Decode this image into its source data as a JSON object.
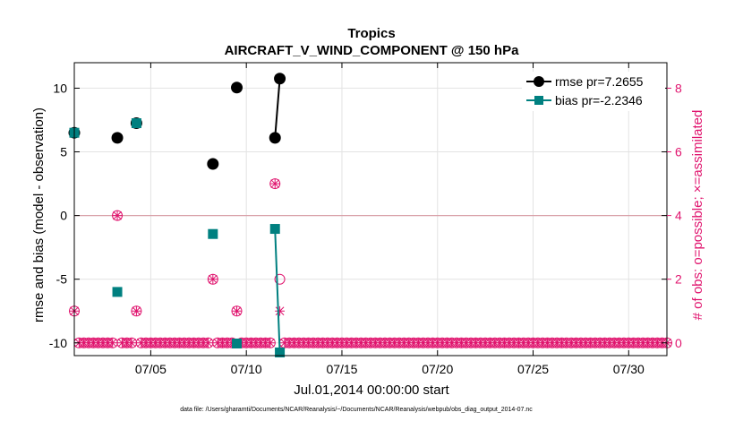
{
  "chart_data": {
    "type": "line",
    "title": "Tropics",
    "subtitle": "AIRCRAFT_V_WIND_COMPONENT @ 150 hPa",
    "xlabel": "Jul.01,2014 00:00:00 start",
    "ylabel": "rmse and bias (model - observation)",
    "y2label": "# of obs: o=possible; ×=assimilated",
    "xlim": [
      1,
      32
    ],
    "ylim": [
      -11,
      12
    ],
    "y2lim": [
      -0.4,
      8.8
    ],
    "x_ticks": [
      5,
      10,
      15,
      20,
      25,
      30
    ],
    "x_tick_labels": [
      "07/05",
      "07/10",
      "07/15",
      "07/20",
      "07/25",
      "07/30"
    ],
    "y_ticks": [
      -10,
      -5,
      0,
      5,
      10
    ],
    "y_tick_labels": [
      "-10",
      "-5",
      "0",
      "5",
      "10"
    ],
    "y2_ticks": [
      0,
      2,
      4,
      6,
      8
    ],
    "y2_tick_labels": [
      "0",
      "2",
      "4",
      "6",
      "8"
    ],
    "grid": true,
    "legend_placement": "top-right",
    "colors": {
      "rmse": "#000000",
      "bias": "#008080",
      "obs": "#e0146e",
      "zero_line": "#d9a0a8"
    },
    "series": [
      {
        "name": "rmse pr=7.2655",
        "marker": "circle",
        "x": [
          1.0,
          3.25,
          4.25,
          8.25,
          9.5,
          11.5,
          11.75
        ],
        "y": [
          6.5,
          6.1,
          7.25,
          4.05,
          10.05,
          6.1,
          10.75
        ],
        "segments": [
          [
            5,
            6
          ]
        ]
      },
      {
        "name": "bias pr=-2.2346",
        "marker": "square",
        "x": [
          1.0,
          3.25,
          4.25,
          8.25,
          9.5,
          11.5,
          11.75
        ],
        "y": [
          6.5,
          -6.0,
          7.25,
          -1.45,
          -10.05,
          -1.05,
          -10.75
        ],
        "segments": [
          [
            5,
            6
          ]
        ]
      }
    ],
    "obs_possible": {
      "x": [
        1.0,
        3.25,
        4.25,
        8.25,
        9.5,
        11.5,
        11.75
      ],
      "y": [
        1,
        4,
        1,
        2,
        1,
        5,
        2
      ]
    },
    "obs_assimilated": {
      "x": [
        1.0,
        3.25,
        4.25,
        8.25,
        9.5,
        11.5,
        11.75
      ],
      "y": [
        1,
        4,
        1,
        2,
        1,
        5,
        1
      ]
    },
    "zero_count_start": 1.0,
    "zero_count_end": 32.0,
    "zero_count_step": 0.25
  },
  "footer": "data file: /Users/gharamti/Documents/NCAR/Reanalysis/~/Documents/NCAR/Reanalysis/webpub/obs_diag_output_2014-07.nc"
}
